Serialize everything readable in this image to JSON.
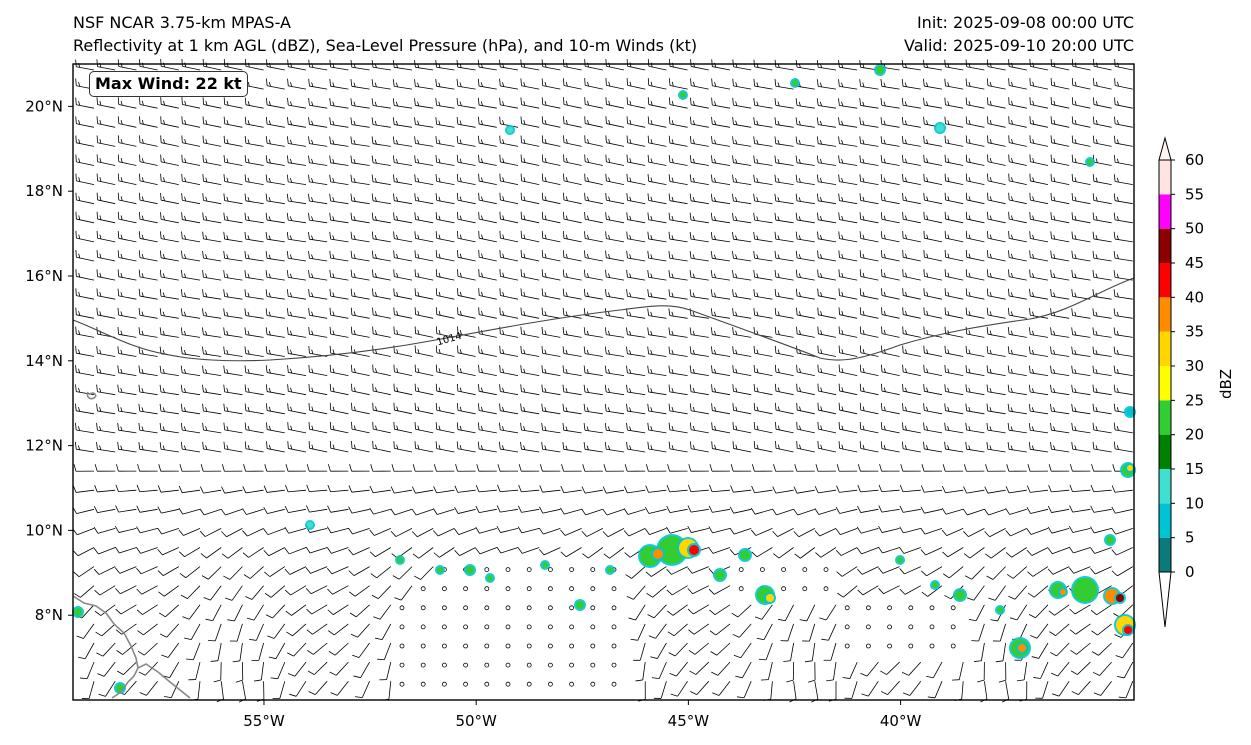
{
  "header": {
    "title_left_line1": "NSF NCAR 3.75-km MPAS-A",
    "title_left_line2": "Reflectivity at 1 km AGL (dBZ), Sea-Level Pressure (hPa), and 10-m Winds (kt)",
    "title_right_line1": "Init: 2025-09-08 00:00 UTC",
    "title_right_line2": "Valid: 2025-09-10 20:00 UTC"
  },
  "map": {
    "max_wind_label": "Max Wind: 22 kt",
    "lat_ticks": [
      "20°N",
      "18°N",
      "16°N",
      "14°N",
      "12°N",
      "10°N",
      "8°N"
    ],
    "lon_ticks": [
      "55°W",
      "50°W",
      "45°W",
      "40°W"
    ],
    "isobar_label": "1014",
    "extent": {
      "lon_min": -59.5,
      "lon_max": -34.5,
      "lat_min": 6,
      "lat_max": 21
    }
  },
  "colorbar": {
    "label": "dBZ",
    "ticks": [
      "0",
      "5",
      "10",
      "15",
      "20",
      "25",
      "30",
      "35",
      "40",
      "45",
      "50",
      "55",
      "60"
    ],
    "colors": [
      "#0b7a7a",
      "#00c4d4",
      "#40e0d0",
      "#008000",
      "#32cd32",
      "#ffff00",
      "#ffd700",
      "#ff8c00",
      "#ff0000",
      "#8b0000",
      "#ff00ff",
      "#ffe4e1"
    ]
  },
  "colors": {
    "axis": "#000000",
    "isobar": "#444444",
    "coast": "#888888",
    "barb": "#000000"
  }
}
